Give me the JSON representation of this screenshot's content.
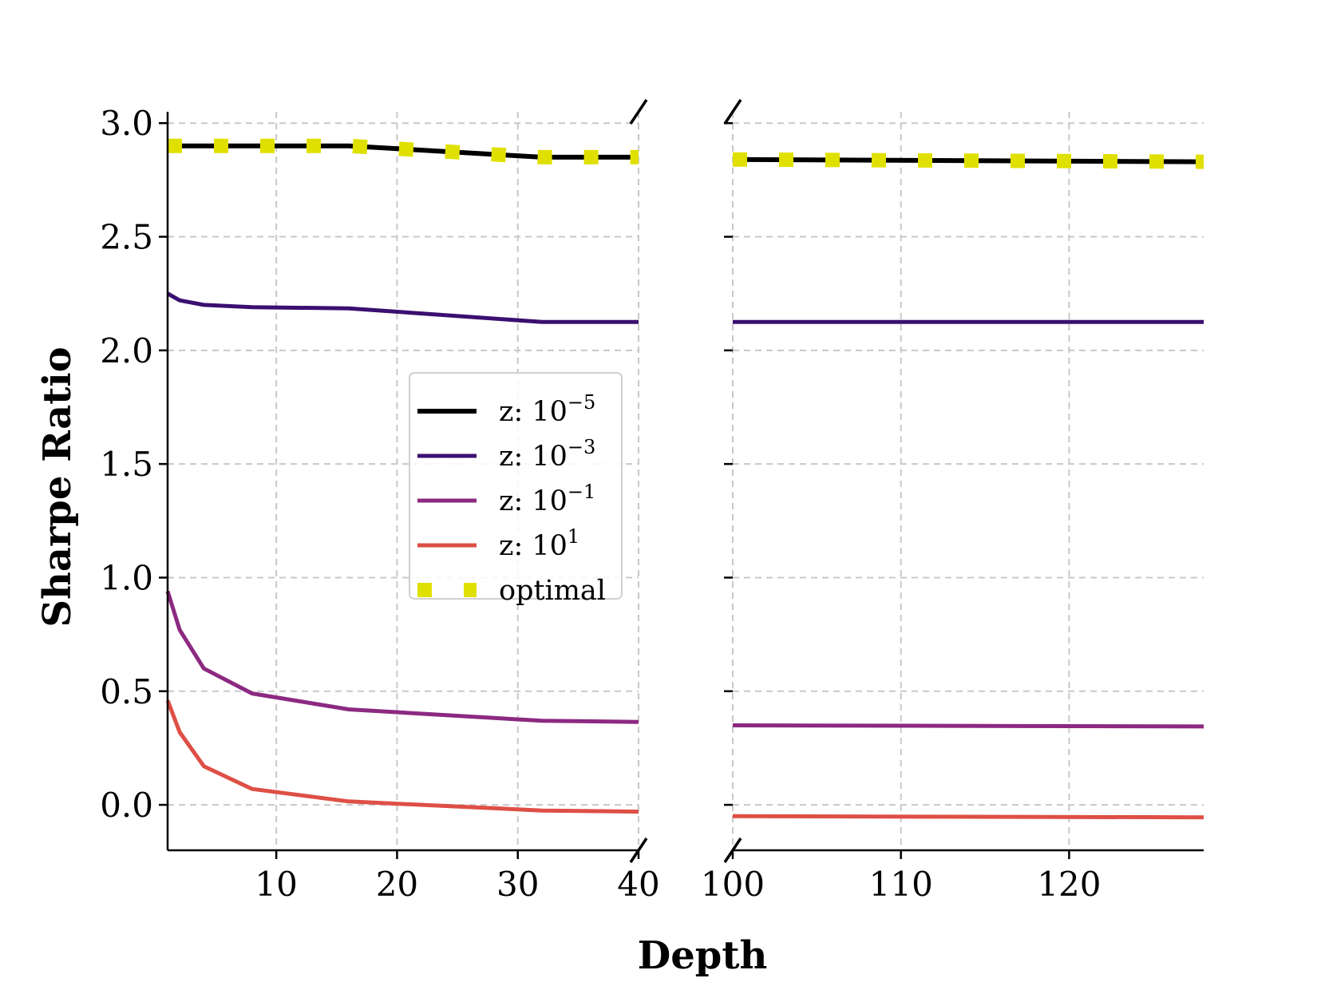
{
  "chart_data": {
    "type": "line",
    "ylabel": "Sharpe Ratio",
    "xlabel": "Depth",
    "ylim": [
      -0.2,
      3.05
    ],
    "yticks": [
      0.0,
      0.5,
      1.0,
      1.5,
      2.0,
      2.5,
      3.0
    ],
    "ytick_labels": [
      "0.0",
      "0.5",
      "1.0",
      "1.5",
      "2.0",
      "2.5",
      "3.0"
    ],
    "grid": true,
    "legend_position": "center",
    "panels": [
      {
        "xlim": [
          1,
          40
        ],
        "xticks": [
          10,
          20,
          30,
          40
        ],
        "xtick_labels": [
          "10",
          "20",
          "30",
          "40"
        ]
      },
      {
        "xlim": [
          100,
          128
        ],
        "xticks": [
          100,
          110,
          120
        ],
        "xtick_labels": [
          "100",
          "110",
          "120"
        ]
      }
    ],
    "series": [
      {
        "name": "z: 10^-5",
        "label_base": "z: 10",
        "label_exp": "−5",
        "color": "#000000",
        "style": "solid",
        "left": {
          "x": [
            1,
            2,
            4,
            8,
            16,
            32,
            40
          ],
          "y": [
            2.9,
            2.9,
            2.9,
            2.9,
            2.9,
            2.85,
            2.85
          ]
        },
        "right": {
          "x": [
            100,
            128
          ],
          "y": [
            2.84,
            2.83
          ]
        }
      },
      {
        "name": "z: 10^-3",
        "label_base": "z: 10",
        "label_exp": "−3",
        "color": "#3b0f70",
        "style": "solid",
        "left": {
          "x": [
            1,
            2,
            4,
            8,
            16,
            32,
            40
          ],
          "y": [
            2.25,
            2.22,
            2.2,
            2.19,
            2.185,
            2.125,
            2.125
          ]
        },
        "right": {
          "x": [
            100,
            128
          ],
          "y": [
            2.125,
            2.125
          ]
        }
      },
      {
        "name": "z: 10^-1",
        "label_base": "z: 10",
        "label_exp": "−1",
        "color": "#8c2981",
        "style": "solid",
        "left": {
          "x": [
            1,
            2,
            4,
            8,
            16,
            32,
            40
          ],
          "y": [
            0.94,
            0.77,
            0.6,
            0.49,
            0.42,
            0.37,
            0.365
          ]
        },
        "right": {
          "x": [
            100,
            128
          ],
          "y": [
            0.35,
            0.345
          ]
        }
      },
      {
        "name": "z: 10^1",
        "label_base": "z: 10",
        "label_exp": "1",
        "color": "#de4f45",
        "style": "solid",
        "left": {
          "x": [
            1,
            2,
            4,
            8,
            16,
            32,
            40
          ],
          "y": [
            0.46,
            0.32,
            0.17,
            0.07,
            0.015,
            -0.025,
            -0.03
          ]
        },
        "right": {
          "x": [
            100,
            128
          ],
          "y": [
            -0.05,
            -0.055
          ]
        }
      },
      {
        "name": "optimal",
        "label_base": "optimal",
        "label_exp": "",
        "color": "#e0e000",
        "style": "dotted",
        "left": {
          "x": [
            1,
            2,
            4,
            8,
            16,
            32,
            40
          ],
          "y": [
            2.9,
            2.9,
            2.9,
            2.9,
            2.9,
            2.85,
            2.85
          ]
        },
        "right": {
          "x": [
            100,
            128
          ],
          "y": [
            2.84,
            2.83
          ]
        }
      }
    ]
  }
}
